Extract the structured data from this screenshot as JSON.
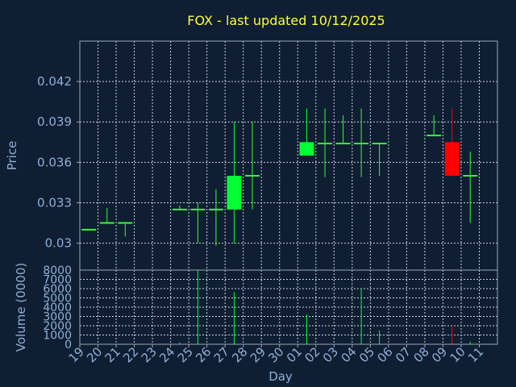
{
  "chart_data": [
    {
      "type": "candlestick",
      "title": "FOX - last updated 10/12/2025",
      "ylabel": "Price",
      "ylim": [
        0.028,
        0.045
      ],
      "yticks": [
        0.03,
        0.033,
        0.036,
        0.039,
        0.042
      ],
      "ytick_labels": [
        "0.03",
        "0.033",
        "0.036",
        "0.039",
        "0.042"
      ],
      "colors": {
        "up": "#00ff33",
        "down": "#ff0000",
        "flat": "#33ff33"
      },
      "candles": [
        {
          "x": "19",
          "open": 0.031,
          "high": 0.031,
          "low": 0.031,
          "close": 0.031
        },
        {
          "x": "20",
          "open": 0.0315,
          "high": 0.0326,
          "low": 0.0315,
          "close": 0.0315
        },
        {
          "x": "21",
          "open": 0.0315,
          "high": 0.0315,
          "low": 0.0305,
          "close": 0.0315
        },
        {
          "x": "24",
          "open": 0.0325,
          "high": 0.0328,
          "low": 0.0325,
          "close": 0.0325
        },
        {
          "x": "25",
          "open": 0.0325,
          "high": 0.033,
          "low": 0.03,
          "close": 0.0325
        },
        {
          "x": "26",
          "open": 0.0325,
          "high": 0.034,
          "low": 0.0298,
          "close": 0.0325
        },
        {
          "x": "27",
          "open": 0.0325,
          "high": 0.039,
          "low": 0.03,
          "close": 0.035
        },
        {
          "x": "28",
          "open": 0.035,
          "high": 0.039,
          "low": 0.0325,
          "close": 0.035
        },
        {
          "x": "01",
          "open": 0.0365,
          "high": 0.04,
          "low": 0.0365,
          "close": 0.0375
        },
        {
          "x": "02",
          "open": 0.0374,
          "high": 0.04,
          "low": 0.0349,
          "close": 0.0374
        },
        {
          "x": "03",
          "open": 0.0374,
          "high": 0.0395,
          "low": 0.0374,
          "close": 0.0374
        },
        {
          "x": "04",
          "open": 0.0374,
          "high": 0.04,
          "low": 0.0349,
          "close": 0.0374
        },
        {
          "x": "05",
          "open": 0.0374,
          "high": 0.0374,
          "low": 0.035,
          "close": 0.0374
        },
        {
          "x": "08",
          "open": 0.038,
          "high": 0.0395,
          "low": 0.038,
          "close": 0.038
        },
        {
          "x": "09",
          "open": 0.0375,
          "high": 0.04,
          "low": 0.035,
          "close": 0.035
        },
        {
          "x": "10",
          "open": 0.035,
          "high": 0.0368,
          "low": 0.0315,
          "close": 0.035
        }
      ]
    },
    {
      "type": "bar",
      "xlabel": "Day",
      "ylabel": "Volume (0000)",
      "ylim": [
        0,
        8000
      ],
      "yticks": [
        0,
        1000,
        2000,
        3000,
        4000,
        5000,
        6000,
        7000,
        8000
      ],
      "ytick_labels": [
        "0",
        "1000",
        "2000",
        "3000",
        "4000",
        "5000",
        "6000",
        "7000",
        "8000"
      ],
      "categories": [
        "19",
        "20",
        "21",
        "22",
        "23",
        "24",
        "25",
        "26",
        "27",
        "28",
        "29",
        "30",
        "01",
        "02",
        "03",
        "04",
        "05",
        "06",
        "07",
        "08",
        "09",
        "10",
        "11"
      ],
      "values": [
        0,
        0,
        0,
        0,
        0,
        200,
        8000,
        0,
        5600,
        0,
        0,
        0,
        3200,
        0,
        0,
        6000,
        1500,
        0,
        0,
        0,
        2000,
        300,
        0
      ],
      "bar_colors": {
        "up": "#00ff33",
        "down": "#ff0000"
      },
      "down_days": [
        "09"
      ]
    }
  ]
}
